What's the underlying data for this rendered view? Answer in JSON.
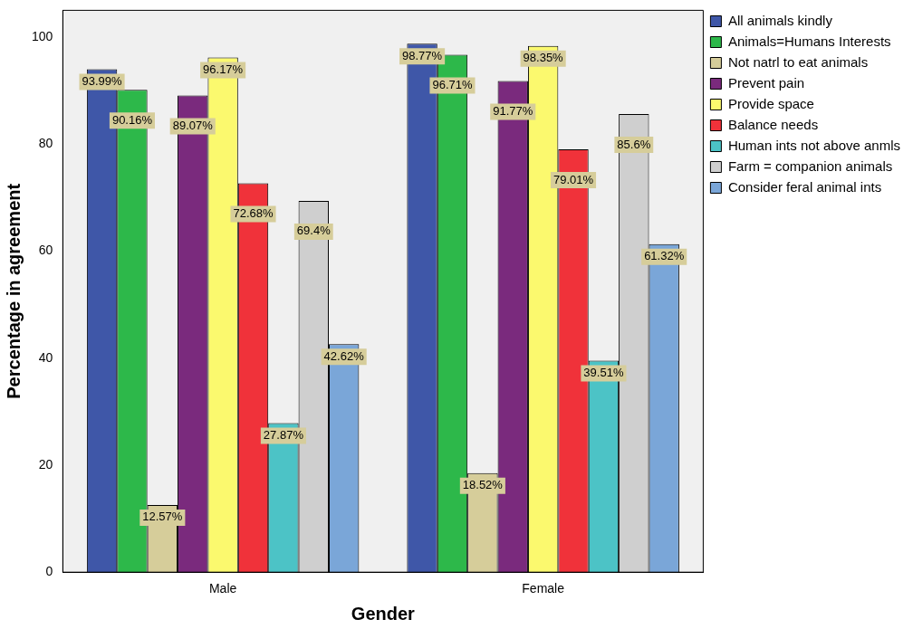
{
  "chart_data": {
    "type": "bar",
    "xlabel": "Gender",
    "ylabel": "Percentage in agreement",
    "categories": [
      "Male",
      "Female"
    ],
    "series": [
      {
        "name": "All animals kindly",
        "color": "#3f57a8",
        "values": [
          93.99,
          98.77
        ],
        "value_labels": [
          "93.99%",
          "98.77%"
        ]
      },
      {
        "name": "Animals=Humans Interests",
        "color": "#2db84a",
        "values": [
          90.16,
          96.71
        ],
        "value_labels": [
          "90.16%",
          "96.71%"
        ]
      },
      {
        "name": "Not natrl to eat animals",
        "color": "#d6cd9a",
        "values": [
          12.57,
          18.52
        ],
        "value_labels": [
          "12.57%",
          "18.52%"
        ]
      },
      {
        "name": "Prevent pain",
        "color": "#7a2a7d",
        "values": [
          89.07,
          91.77
        ],
        "value_labels": [
          "89.07%",
          "91.77%"
        ]
      },
      {
        "name": "Provide space",
        "color": "#fbf96e",
        "values": [
          96.17,
          98.35
        ],
        "value_labels": [
          "96.17%",
          "98.35%"
        ]
      },
      {
        "name": "Balance needs",
        "color": "#f0323a",
        "values": [
          72.68,
          79.01
        ],
        "value_labels": [
          "72.68%",
          "79.01%"
        ]
      },
      {
        "name": "Human ints not above anmls",
        "color": "#4cc3c6",
        "values": [
          27.87,
          39.51
        ],
        "value_labels": [
          "27.87%",
          "39.51%"
        ]
      },
      {
        "name": "Farm = companion animals",
        "color": "#cfcfcf",
        "values": [
          69.4,
          85.6
        ],
        "value_labels": [
          "69.4%",
          "85.6%"
        ]
      },
      {
        "name": "Consider feral animal ints",
        "color": "#7aa6d8",
        "values": [
          42.62,
          61.32
        ],
        "value_labels": [
          "42.62%",
          "61.32%"
        ]
      }
    ],
    "ylim": [
      0,
      105
    ],
    "yticks": [
      0,
      20,
      40,
      60,
      80,
      100
    ],
    "grid": false,
    "legend": "right"
  }
}
